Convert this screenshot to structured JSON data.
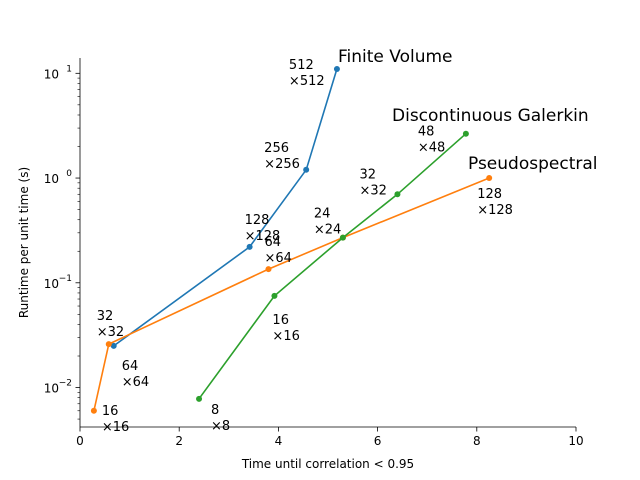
{
  "chart_data": {
    "type": "line",
    "title": "",
    "xlabel": "Time until correlation $<$ 0.95",
    "ylabel": "Runtime per unit time (s)",
    "xlim": [
      0,
      10
    ],
    "ylim": [
      0.0042,
      14
    ],
    "yscale": "log",
    "grid": false,
    "x_ticks": [
      0,
      2,
      4,
      6,
      8,
      10
    ],
    "x_tick_labels": [
      "0",
      "2",
      "4",
      "6",
      "8",
      "10"
    ],
    "y_ticks": [
      0.01,
      0.1,
      1,
      10
    ],
    "y_tick_labels": [
      "10",
      "10",
      "10",
      "10"
    ],
    "y_tick_exponents": [
      "−2",
      "−1",
      "0",
      "1"
    ],
    "xlabel_text": "Time until correlation",
    "xlabel_symbol": "<",
    "xlabel_value": "0.95",
    "series": [
      {
        "name": "Finite Volume",
        "color": "#1f77b4",
        "x": [
          0.68,
          3.42,
          4.56,
          5.18
        ],
        "y": [
          0.025,
          0.22,
          1.2,
          11
        ],
        "point_labels": [
          [
            "64",
            "×64"
          ],
          [
            "128",
            "×128"
          ],
          [
            "256",
            "×256"
          ],
          [
            "512",
            "×512"
          ]
        ]
      },
      {
        "name": "Pseudospectral",
        "color": "#ff7f0e",
        "x": [
          0.28,
          0.58,
          3.8,
          5.3,
          8.25
        ],
        "y": [
          0.006,
          0.026,
          0.135,
          0.27,
          1.0
        ],
        "point_labels": [
          [
            "16",
            "×16"
          ],
          [
            "32",
            "×32"
          ],
          [
            "64",
            "×64"
          ],
          [
            "",
            ""
          ],
          [
            "128",
            "×128"
          ]
        ]
      },
      {
        "name": "Discontinuous Galerkin",
        "color": "#2ca02c",
        "x": [
          2.4,
          3.92,
          5.3,
          6.4,
          7.78
        ],
        "y": [
          0.0078,
          0.075,
          0.27,
          0.7,
          2.65
        ],
        "point_labels": [
          [
            "8",
            "×8"
          ],
          [
            "16",
            "×16"
          ],
          [
            "24",
            "×24"
          ],
          [
            "32",
            "×32"
          ],
          [
            "48",
            "×48"
          ]
        ]
      }
    ],
    "series_titles": [
      "Finite Volume",
      "Discontinuous Galerkin",
      "Pseudospectral"
    ]
  }
}
